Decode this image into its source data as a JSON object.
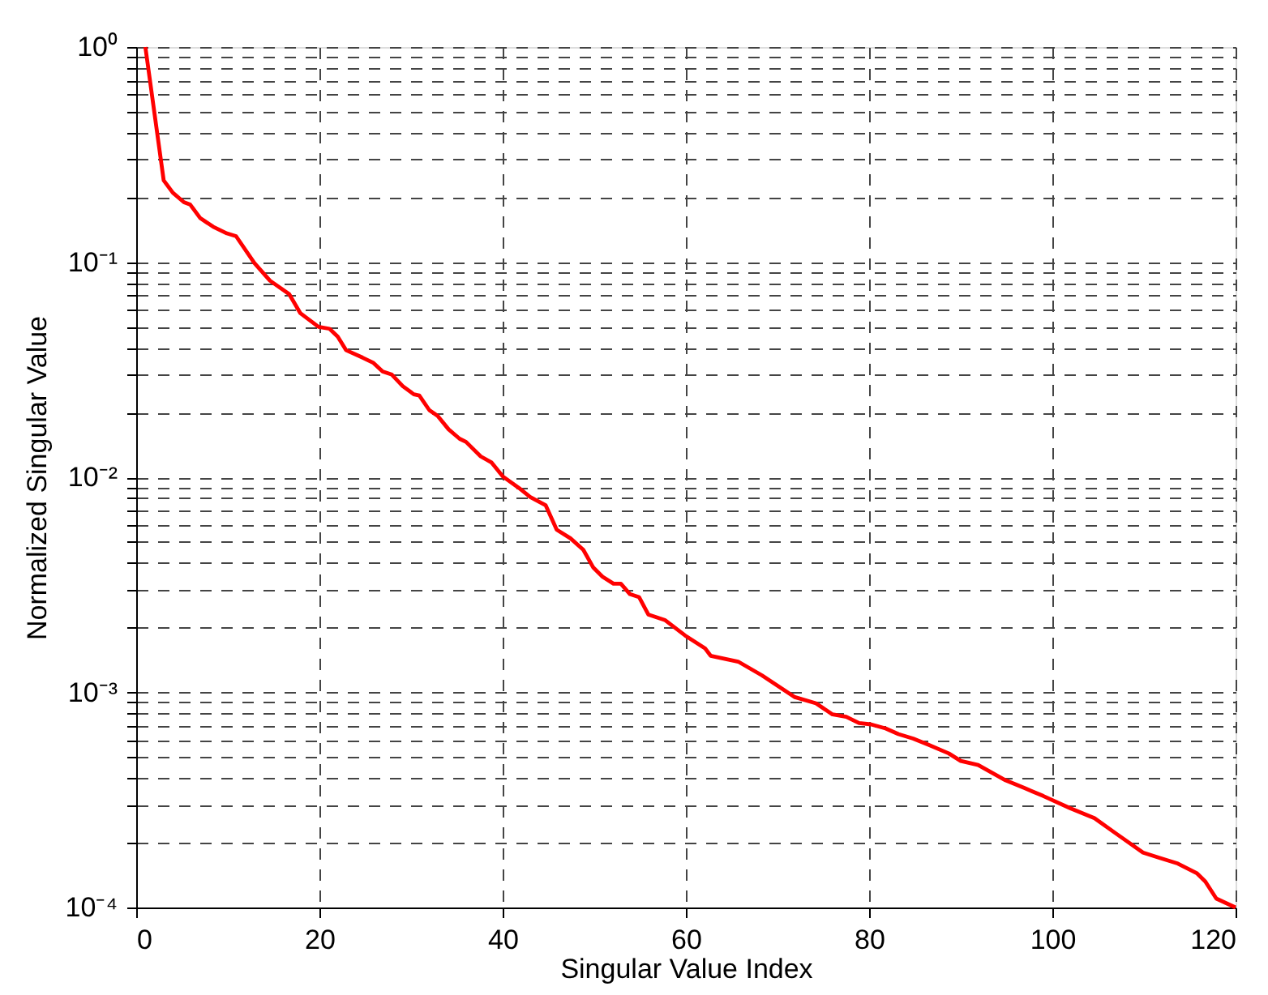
{
  "chart_data": {
    "type": "line",
    "xlabel": "Singular Value Index",
    "ylabel": "Normalized Singular Value",
    "log": "y",
    "grid": true,
    "line_style": "solid",
    "marker": "none",
    "xlim": [
      0,
      120
    ],
    "xticks": [
      0,
      20,
      40,
      60,
      80,
      100,
      120
    ],
    "ylim": [
      0.0001,
      1
    ],
    "yticks": [
      {
        "value": 0.0001,
        "label": "10⁻⁴"
      },
      {
        "value": 0.0002,
        "label": null
      },
      {
        "value": 0.0003,
        "label": null
      },
      {
        "value": 0.0004,
        "label": null
      },
      {
        "value": 0.0005,
        "label": null
      },
      {
        "value": 0.0006,
        "label": null
      },
      {
        "value": 0.0007,
        "label": null
      },
      {
        "value": 0.0008,
        "label": null
      },
      {
        "value": 0.0009,
        "label": null
      },
      {
        "value": 0.001,
        "label": "10⁻³"
      },
      {
        "value": 0.002,
        "label": null
      },
      {
        "value": 0.003,
        "label": null
      },
      {
        "value": 0.004,
        "label": null
      },
      {
        "value": 0.005,
        "label": null
      },
      {
        "value": 0.006,
        "label": null
      },
      {
        "value": 0.007,
        "label": null
      },
      {
        "value": 0.008,
        "label": null
      },
      {
        "value": 0.009,
        "label": null
      },
      {
        "value": 0.01,
        "label": "10⁻²"
      },
      {
        "value": 0.02,
        "label": null
      },
      {
        "value": 0.03,
        "label": null
      },
      {
        "value": 0.04,
        "label": null
      },
      {
        "value": 0.05,
        "label": null
      },
      {
        "value": 0.06,
        "label": null
      },
      {
        "value": 0.07,
        "label": null
      },
      {
        "value": 0.08,
        "label": null
      },
      {
        "value": 0.09,
        "label": null
      },
      {
        "value": 0.1,
        "label": "10⁻¹"
      },
      {
        "value": 0.2,
        "label": null
      },
      {
        "value": 0.3,
        "label": null
      },
      {
        "value": 0.4,
        "label": null
      },
      {
        "value": 0.5,
        "label": null
      },
      {
        "value": 0.6,
        "label": null
      },
      {
        "value": 0.7,
        "label": null
      },
      {
        "value": 0.8,
        "label": null
      },
      {
        "value": 0.9,
        "label": null
      },
      {
        "value": 1,
        "label": "10⁰"
      }
    ],
    "series": [
      {
        "color": "#ff0000",
        "x": [
          1,
          3,
          4,
          5.2,
          5.9,
          7,
          8.4,
          9.9,
          10.9,
          12.9,
          14.6,
          16.7,
          17.9,
          19.9,
          21.1,
          22,
          22.9,
          24.7,
          25.9,
          26.9,
          27.9,
          29.1,
          30.3,
          30.9,
          32,
          32.9,
          34.1,
          35.3,
          36,
          37.6,
          38.8,
          40,
          41.8,
          43,
          44.7,
          45.9,
          47.4,
          48.8,
          49.9,
          50.9,
          52.1,
          52.9,
          53.9,
          54.9,
          55.9,
          57.7,
          59.9,
          62.1,
          62.7,
          65.7,
          68.3,
          71.9,
          74.2,
          76,
          77.5,
          78.9,
          80.2,
          81.8,
          83.2,
          84.8,
          86.5,
          88.7,
          90,
          91.9,
          94.9,
          96.9,
          99,
          101.9,
          104.6,
          107,
          109.9,
          111.7,
          113.7,
          115.8,
          116.7,
          117.9,
          120
        ],
        "values": [
          1,
          0.24,
          0.21,
          0.19,
          0.185,
          0.16,
          0.146,
          0.136,
          0.132,
          0.099,
          0.082,
          0.071,
          0.058,
          0.05,
          0.049,
          0.045,
          0.039,
          0.036,
          0.034,
          0.031,
          0.03,
          0.0265,
          0.0243,
          0.024,
          0.0205,
          0.0193,
          0.0167,
          0.0151,
          0.0146,
          0.0125,
          0.0117,
          0.0101,
          0.0089,
          0.0081,
          0.0074,
          0.0057,
          0.0052,
          0.0046,
          0.0038,
          0.00345,
          0.0032,
          0.0032,
          0.00286,
          0.00277,
          0.0023,
          0.00217,
          0.00184,
          0.0016,
          0.00148,
          0.00139,
          0.0012,
          0.00095,
          0.00089,
          0.00079,
          0.00077,
          0.00072,
          0.00071,
          0.00068,
          0.00064,
          0.00061,
          0.00057,
          0.00052,
          0.00048,
          0.00046,
          0.00039,
          0.00036,
          0.00033,
          0.00029,
          0.00026,
          0.00022,
          0.00018,
          0.00017,
          0.00016,
          0.000144,
          0.000132,
          0.00011,
          0.0001
        ]
      }
    ]
  }
}
